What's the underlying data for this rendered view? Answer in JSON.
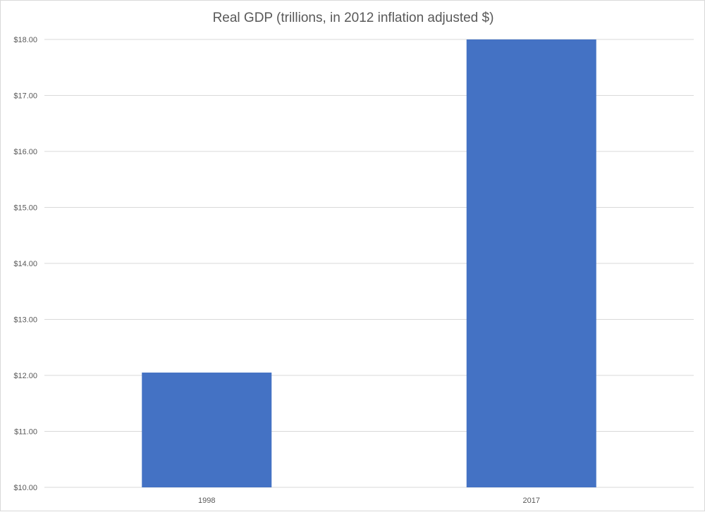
{
  "chart_data": {
    "type": "bar",
    "title": "Real GDP (trillions, in 2012 inflation adjusted $)",
    "xlabel": "",
    "ylabel": "",
    "categories": [
      "1998",
      "2017"
    ],
    "values": [
      12.05,
      18.0
    ],
    "ylim": [
      10,
      18
    ],
    "yticks": [
      10,
      11,
      12,
      13,
      14,
      15,
      16,
      17,
      18
    ],
    "ytick_labels": [
      "$10.00",
      "$11.00",
      "$12.00",
      "$13.00",
      "$14.00",
      "$15.00",
      "$16.00",
      "$17.00",
      "$18.00"
    ],
    "grid": true,
    "legend": "none",
    "colors": {
      "bar": "#4472C4",
      "grid": "#d9d9d9",
      "text": "#595959"
    }
  }
}
